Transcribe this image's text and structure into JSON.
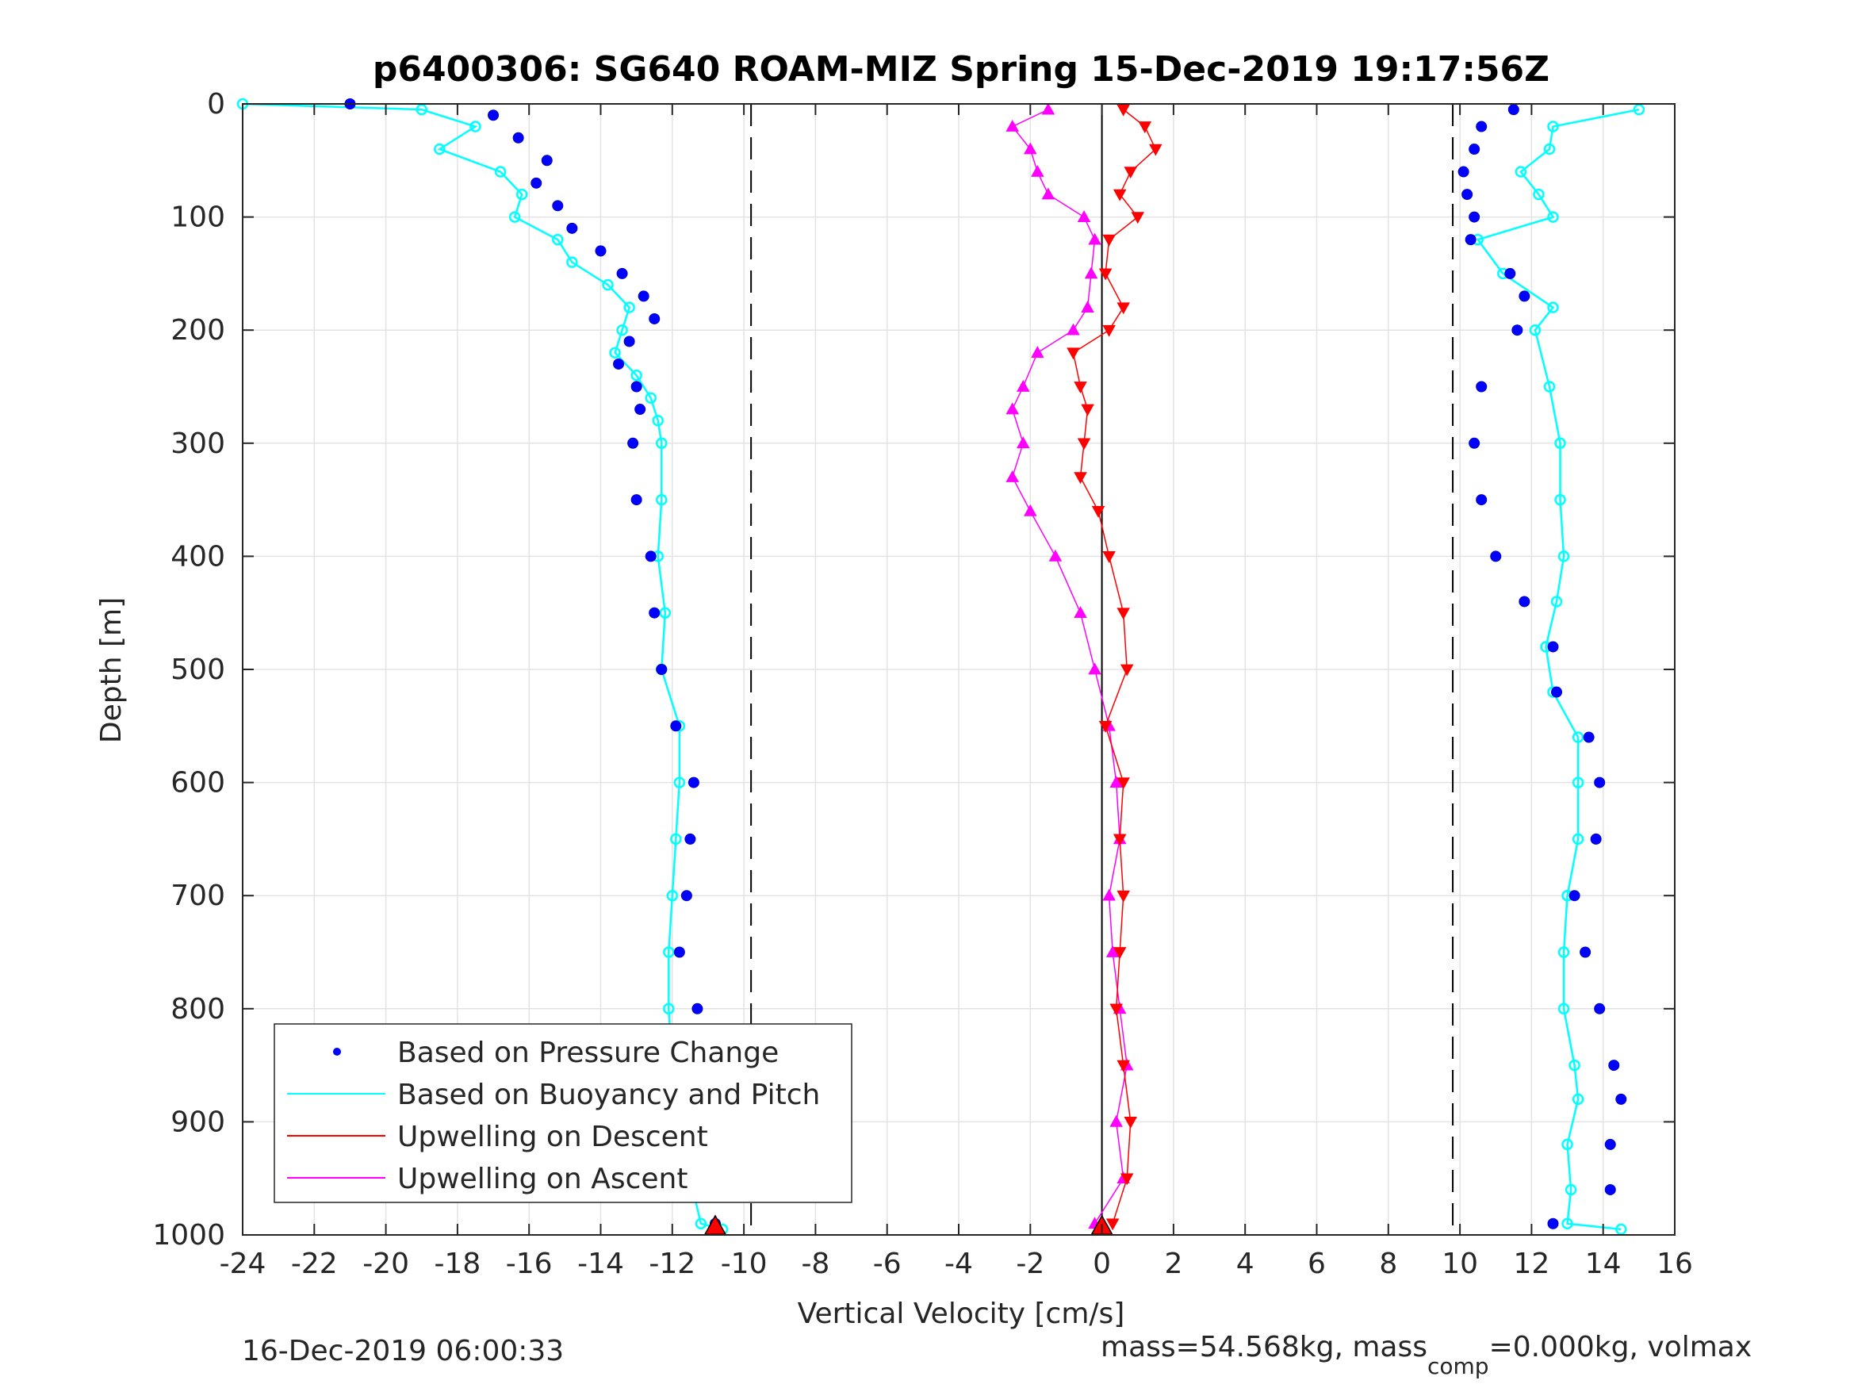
{
  "chart_data": {
    "type": "scatter",
    "title": "p6400306: SG640 ROAM-MIZ Spring 15-Dec-2019 19:17:56Z",
    "xlabel": "Vertical Velocity [cm/s]",
    "ylabel": "Depth [m]",
    "xlim": [
      -24,
      16
    ],
    "ylim": [
      1000,
      0
    ],
    "y_reversed": true,
    "grid": true,
    "xticks": [
      "-24",
      "-22",
      "-20",
      "-18",
      "-16",
      "-14",
      "-12",
      "-10",
      "-8",
      "-6",
      "-4",
      "-2",
      "0",
      "2",
      "4",
      "6",
      "8",
      "10",
      "12",
      "14",
      "16"
    ],
    "yticks": [
      "0",
      "100",
      "200",
      "300",
      "400",
      "500",
      "600",
      "700",
      "800",
      "900",
      "1000"
    ],
    "reference_lines": [
      {
        "x": -9.8,
        "style": "dashed",
        "color": "#000000"
      },
      {
        "x": 9.8,
        "style": "dashed",
        "color": "#000000"
      },
      {
        "x": 0,
        "style": "solid",
        "color": "#000000"
      }
    ],
    "legend": {
      "position": "bottom-left",
      "entries": [
        "Based on Pressure Change",
        "Based on Buoyancy and Pitch",
        "Upwelling on Descent",
        "Upwelling on Ascent"
      ]
    },
    "series": [
      {
        "name": "Based on Pressure Change",
        "color": "#0000ff",
        "marker": "dot",
        "descent": {
          "depth": [
            0,
            10,
            30,
            50,
            70,
            90,
            110,
            130,
            150,
            170,
            190,
            210,
            230,
            250,
            270,
            300,
            350,
            400,
            450,
            500,
            550,
            600,
            650,
            700,
            750,
            800,
            850,
            900,
            950,
            990
          ],
          "velocity": [
            -21.0,
            -17.0,
            -16.3,
            -15.5,
            -15.8,
            -15.2,
            -14.8,
            -14.0,
            -13.4,
            -12.8,
            -12.5,
            -13.2,
            -13.5,
            -13.0,
            -12.9,
            -13.1,
            -13.0,
            -12.6,
            -12.5,
            -12.3,
            -11.9,
            -11.4,
            -11.5,
            -11.6,
            -11.8,
            -11.3,
            -11.0,
            -11.1,
            -10.9,
            -10.8
          ]
        },
        "ascent": {
          "depth": [
            990,
            960,
            920,
            880,
            850,
            800,
            750,
            700,
            650,
            600,
            560,
            520,
            480,
            440,
            400,
            350,
            300,
            250,
            200,
            170,
            150,
            120,
            100,
            80,
            60,
            40,
            20,
            5
          ],
          "velocity": [
            12.6,
            14.2,
            14.2,
            14.5,
            14.3,
            13.9,
            13.5,
            13.2,
            13.8,
            13.9,
            13.6,
            12.7,
            12.6,
            11.8,
            11.0,
            10.6,
            10.4,
            10.6,
            11.6,
            11.8,
            11.4,
            10.3,
            10.4,
            10.2,
            10.1,
            10.4,
            10.6,
            11.5
          ]
        }
      },
      {
        "name": "Based on Buoyancy and Pitch",
        "color": "#00ffff",
        "marker": "line-circle",
        "descent": {
          "depth": [
            0,
            5,
            20,
            40,
            60,
            80,
            100,
            120,
            140,
            160,
            180,
            200,
            220,
            240,
            260,
            280,
            300,
            350,
            400,
            450,
            500,
            550,
            600,
            650,
            700,
            750,
            800,
            850,
            900,
            950,
            990,
            995
          ],
          "velocity": [
            -24.0,
            -19.0,
            -17.5,
            -18.5,
            -16.8,
            -16.2,
            -16.4,
            -15.2,
            -14.8,
            -13.8,
            -13.2,
            -13.4,
            -13.6,
            -13.0,
            -12.6,
            -12.4,
            -12.3,
            -12.3,
            -12.4,
            -12.2,
            -12.3,
            -11.8,
            -11.8,
            -11.9,
            -12.0,
            -12.1,
            -12.1,
            -12.0,
            -11.9,
            -11.5,
            -11.2,
            -10.6
          ]
        },
        "ascent": {
          "depth": [
            995,
            990,
            960,
            920,
            880,
            850,
            800,
            750,
            700,
            650,
            600,
            560,
            520,
            480,
            440,
            400,
            350,
            300,
            250,
            200,
            180,
            150,
            120,
            100,
            80,
            60,
            40,
            20,
            5
          ],
          "velocity": [
            14.5,
            13.0,
            13.1,
            13.0,
            13.3,
            13.2,
            12.9,
            12.9,
            13.0,
            13.3,
            13.3,
            13.3,
            12.6,
            12.4,
            12.7,
            12.9,
            12.8,
            12.8,
            12.5,
            12.1,
            12.6,
            11.2,
            10.5,
            12.6,
            12.2,
            11.7,
            12.5,
            12.6,
            15.0
          ]
        }
      },
      {
        "name": "Upwelling on Descent",
        "color": "#ff0000",
        "marker": "triangle-down",
        "depth": [
          5,
          20,
          40,
          60,
          80,
          100,
          120,
          150,
          180,
          200,
          220,
          250,
          270,
          300,
          330,
          360,
          400,
          450,
          500,
          550,
          600,
          650,
          700,
          750,
          800,
          850,
          900,
          950,
          990
        ],
        "velocity": [
          0.6,
          1.2,
          1.5,
          0.8,
          0.5,
          1.0,
          0.2,
          0.1,
          0.6,
          0.2,
          -0.8,
          -0.6,
          -0.4,
          -0.5,
          -0.6,
          -0.1,
          0.2,
          0.6,
          0.7,
          0.1,
          0.6,
          0.5,
          0.6,
          0.5,
          0.4,
          0.6,
          0.8,
          0.7,
          0.3
        ]
      },
      {
        "name": "Upwelling on Ascent",
        "color": "#ff00ff",
        "marker": "triangle-up",
        "depth": [
          5,
          20,
          40,
          60,
          80,
          100,
          120,
          150,
          180,
          200,
          220,
          250,
          270,
          300,
          330,
          360,
          400,
          450,
          500,
          550,
          600,
          650,
          700,
          750,
          800,
          850,
          900,
          950,
          990
        ],
        "velocity": [
          -1.5,
          -2.5,
          -2.0,
          -1.8,
          -1.5,
          -0.5,
          -0.2,
          -0.3,
          -0.4,
          -0.8,
          -1.8,
          -2.2,
          -2.5,
          -2.2,
          -2.5,
          -2.0,
          -1.3,
          -0.6,
          -0.2,
          0.2,
          0.4,
          0.5,
          0.2,
          0.3,
          0.5,
          0.7,
          0.4,
          0.6,
          -0.2
        ]
      }
    ],
    "markers": {
      "start_of_dive": {
        "velocity": -10.8,
        "depth": 995,
        "color": "#ff0000"
      },
      "bottom_turn": {
        "velocity": 0.0,
        "depth": 995,
        "color": "#ff0000"
      }
    }
  },
  "footer": {
    "timestamp": "16-Dec-2019 06:00:33",
    "mass_text_1": "mass=54.568kg, mass",
    "mass_sub": "comp",
    "mass_text_2": "=0.000kg, volmax"
  }
}
